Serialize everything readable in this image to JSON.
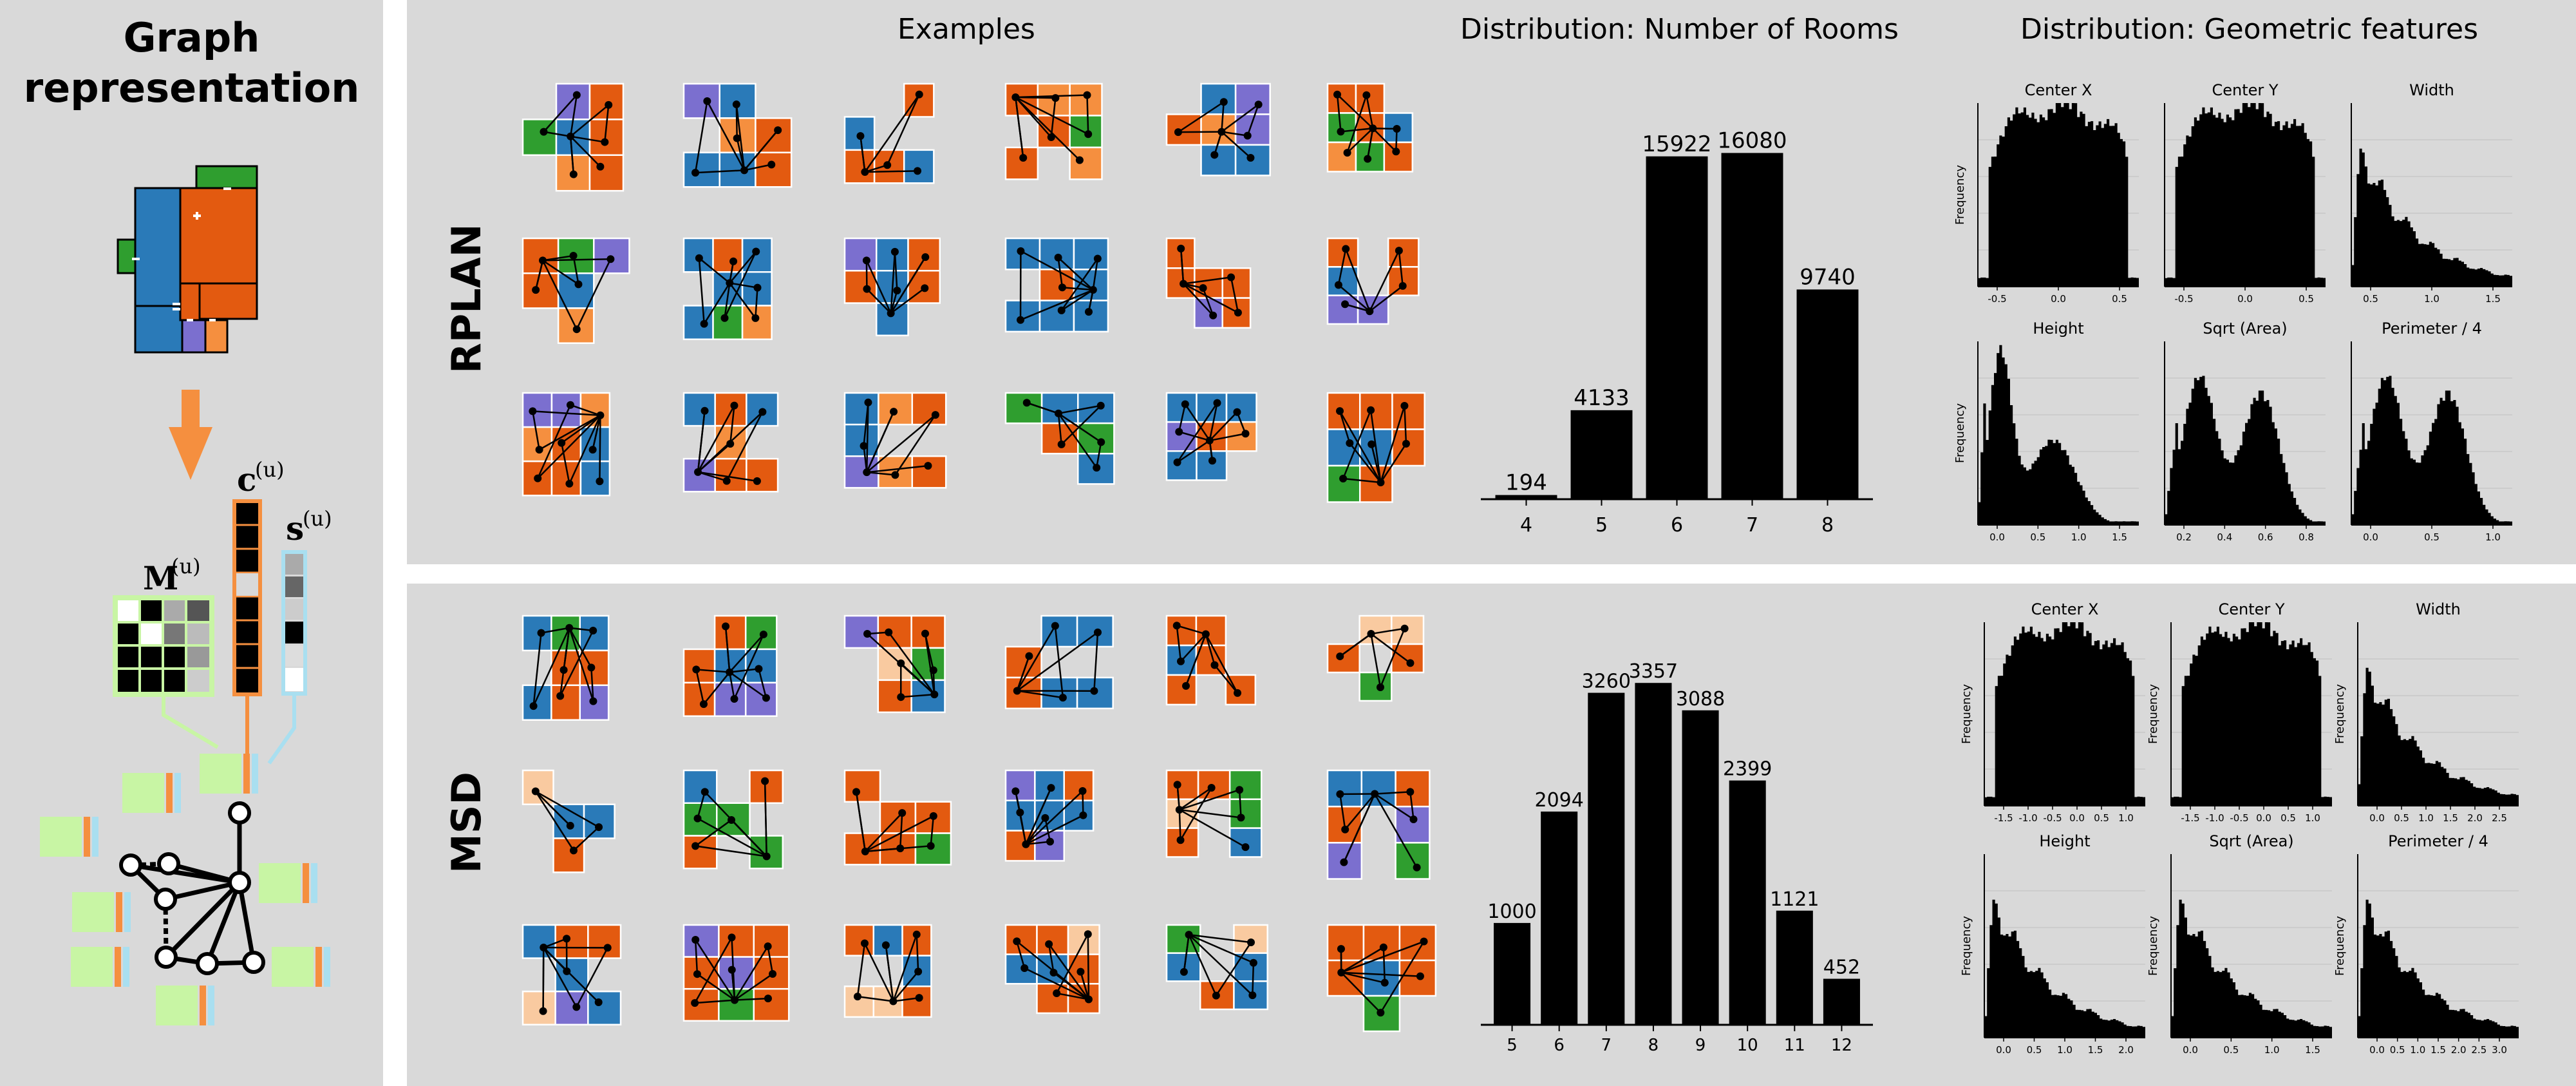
{
  "left": {
    "title_line1": "Graph",
    "title_line2": "representation",
    "labels": {
      "m": "M",
      "m_sup": "(u)",
      "c": "c",
      "c_sup": "(u)",
      "s": "s",
      "s_sup": "(u)"
    }
  },
  "headers": {
    "examples": "Examples",
    "rooms": "Distribution: Number of Rooms",
    "geometric": "Distribution: Geometric features"
  },
  "rows": [
    {
      "label": "RPLAN"
    },
    {
      "label": "MSD"
    }
  ],
  "colors": {
    "blue": "#2a7ab8",
    "orange": "#e35a10",
    "green": "#2f9e2f",
    "purple": "#7b6fcf",
    "peach": "#f9caa0",
    "lightorange": "#f58f3f",
    "lightgreen": "#c8f5a4",
    "lightblue": "#a9dff0",
    "panel": "#d9d9d9"
  },
  "chart_data": [
    {
      "type": "bar",
      "dataset": "RPLAN",
      "categories": [
        "4",
        "5",
        "6",
        "7",
        "8"
      ],
      "values": [
        194,
        4133,
        15922,
        16080,
        9740
      ],
      "ylim": [
        0,
        17500
      ]
    },
    {
      "type": "bar",
      "dataset": "MSD",
      "categories": [
        "5",
        "6",
        "7",
        "8",
        "9",
        "10",
        "11",
        "12"
      ],
      "values": [
        1000,
        2094,
        3260,
        3357,
        3088,
        2399,
        1121,
        452
      ],
      "ylim": [
        0,
        3700
      ]
    },
    {
      "type": "bar",
      "dataset": "RPLAN",
      "ylabel": "Frequency",
      "yscale": "log",
      "histograms": [
        {
          "title": "Center X",
          "xticks": [
            "-0.5",
            "0.0",
            "0.5"
          ]
        },
        {
          "title": "Center Y",
          "xticks": [
            "-0.5",
            "0.0",
            "0.5"
          ]
        },
        {
          "title": "Width",
          "xticks": [
            "0.5",
            "1.0",
            "1.5"
          ]
        },
        {
          "title": "Height",
          "xticks": [
            "0.0",
            "0.5",
            "1.0",
            "1.5"
          ]
        },
        {
          "title": "Sqrt (Area)",
          "xticks": [
            "0.2",
            "0.4",
            "0.6",
            "0.8"
          ]
        },
        {
          "title": "Perimeter / 4",
          "xticks": [
            "0.0",
            "0.5",
            "1.0"
          ]
        }
      ]
    },
    {
      "type": "bar",
      "dataset": "MSD",
      "ylabel": "Frequency",
      "yscale": "log",
      "histograms": [
        {
          "title": "Center X",
          "xticks": [
            "-1.5",
            "-1.0",
            "-0.5",
            "0.0",
            "0.5",
            "1.0"
          ]
        },
        {
          "title": "Center Y",
          "xticks": [
            "-1.5",
            "-1.0",
            "-0.5",
            "0.0",
            "0.5",
            "1.0"
          ]
        },
        {
          "title": "Width",
          "xticks": [
            "0.0",
            "0.5",
            "1.0",
            "1.5",
            "2.0",
            "2.5"
          ]
        },
        {
          "title": "Height",
          "xticks": [
            "0.0",
            "0.5",
            "1.0",
            "1.5",
            "2.0"
          ]
        },
        {
          "title": "Sqrt (Area)",
          "xticks": [
            "0.0",
            "0.5",
            "1.0",
            "1.5"
          ]
        },
        {
          "title": "Perimeter / 4",
          "xticks": [
            "0.0",
            "0.5",
            "1.0",
            "1.5",
            "2.0",
            "2.5",
            "3.0"
          ]
        }
      ]
    }
  ]
}
